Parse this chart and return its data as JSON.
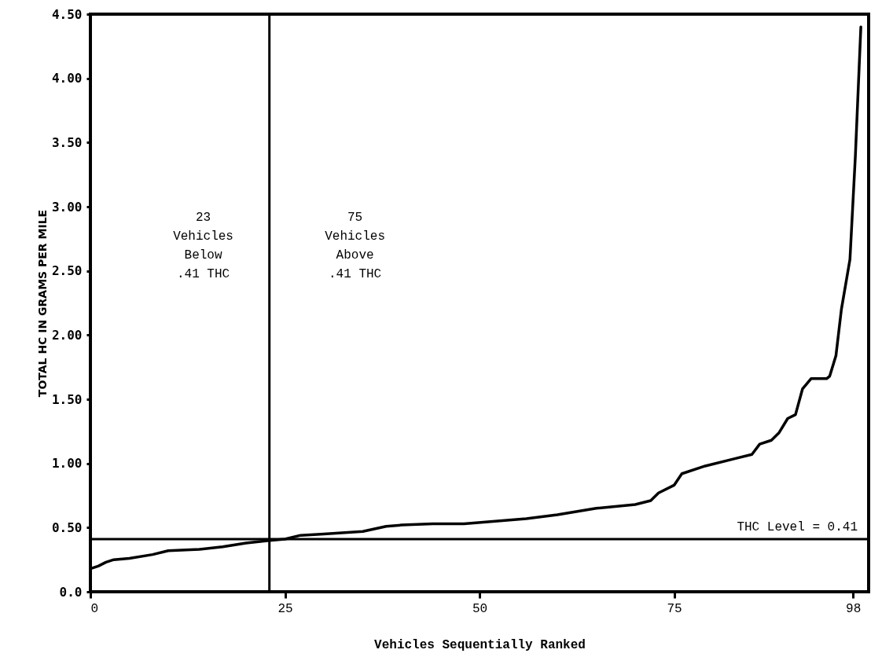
{
  "chart_data": {
    "type": "line",
    "xlabel": "Vehicles Sequentially Ranked",
    "ylabel": "TOTAL HC IN GRAMS PER MILE",
    "xlim": [
      0,
      100
    ],
    "xticks": [
      0,
      25,
      50,
      75,
      98
    ],
    "ylim": [
      0,
      4.5
    ],
    "yticks": [
      {
        "value": 0,
        "label": "0.0"
      },
      {
        "value": 0.5,
        "label": "0.50"
      },
      {
        "value": 1,
        "label": "1.00"
      },
      {
        "value": 1.5,
        "label": "1.50"
      },
      {
        "value": 2,
        "label": "2.00"
      },
      {
        "value": 2.5,
        "label": "2.50"
      },
      {
        "value": 3,
        "label": "3.00"
      },
      {
        "value": 3.5,
        "label": "3.50"
      },
      {
        "value": 4,
        "label": "4.00"
      },
      {
        "value": 4.5,
        "label": "4.50"
      }
    ],
    "grid": false,
    "marker": "none",
    "line_style": "solid",
    "series": [
      {
        "color": "#000000",
        "x": [
          0,
          1,
          2,
          3,
          5,
          8,
          10,
          14,
          17,
          20,
          23,
          25,
          27,
          30,
          35,
          38,
          40,
          44,
          48,
          52,
          56,
          60,
          65,
          70,
          72,
          73,
          75,
          76,
          79,
          83,
          85,
          86,
          87.5,
          88.5,
          89.6,
          90.6,
          91.5,
          92.6,
          94.6,
          95,
          95.8,
          96.5,
          97.6,
          98.3,
          99
        ],
        "values": [
          0.18,
          0.2,
          0.23,
          0.25,
          0.26,
          0.29,
          0.32,
          0.33,
          0.35,
          0.38,
          0.4,
          0.41,
          0.44,
          0.45,
          0.47,
          0.51,
          0.52,
          0.53,
          0.53,
          0.55,
          0.57,
          0.6,
          0.65,
          0.68,
          0.71,
          0.77,
          0.83,
          0.92,
          0.98,
          1.04,
          1.07,
          1.15,
          1.18,
          1.24,
          1.35,
          1.38,
          1.58,
          1.66,
          1.66,
          1.68,
          1.84,
          2.2,
          2.59,
          3.4,
          4.4
        ]
      }
    ],
    "ref_lines": [
      {
        "axis": "y",
        "value": 0.41,
        "label": "THC Level = 0.41"
      },
      {
        "axis": "x",
        "value": 23
      }
    ],
    "annotations": [
      "23\nVehicles\nBelow\n.41 THC",
      "75\nVehicles\nAbove\n.41 THC"
    ]
  }
}
